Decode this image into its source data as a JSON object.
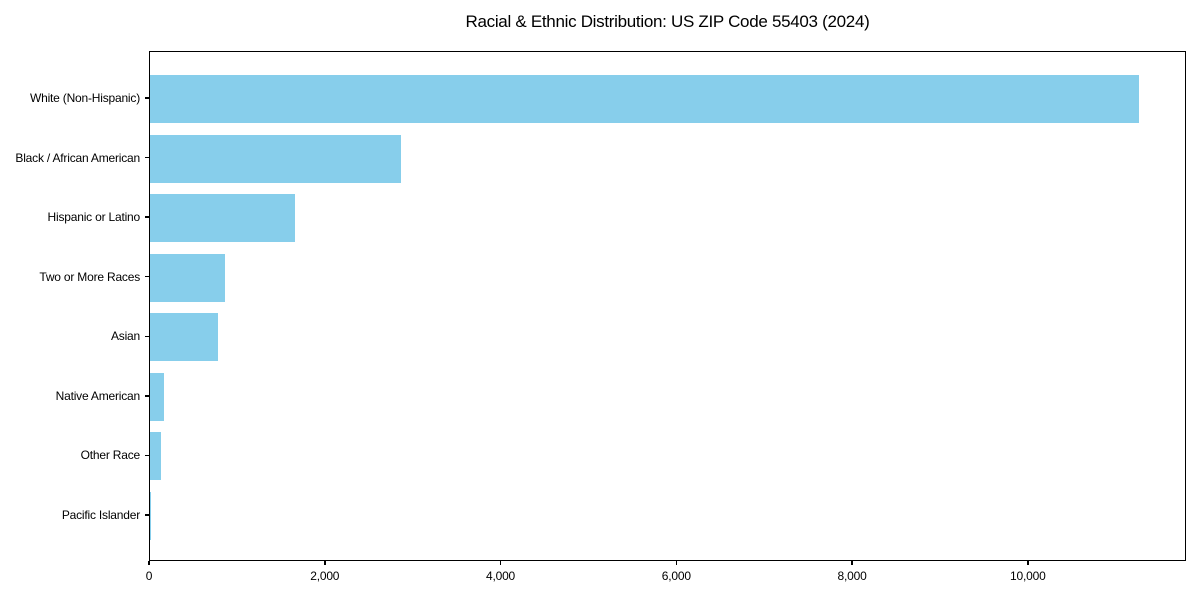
{
  "title": "Racial & Ethnic Distribution: US ZIP Code 55403 (2024)",
  "colors": {
    "bar": "#87CEEB",
    "spine": "#000000",
    "text": "#000000",
    "background": "#ffffff"
  },
  "chart_data": {
    "type": "bar",
    "orientation": "horizontal",
    "title": "Racial & Ethnic Distribution: US ZIP Code 55403 (2024)",
    "xlabel": "",
    "ylabel": "",
    "categories": [
      "White (Non-Hispanic)",
      "Black / African American",
      "Hispanic or Latino",
      "Two or More Races",
      "Asian",
      "Native American",
      "Other Race",
      "Pacific Islander"
    ],
    "values": [
      11250,
      2860,
      1650,
      850,
      770,
      160,
      120,
      15
    ],
    "xlim": [
      0,
      11800
    ],
    "x_ticks": [
      0,
      2000,
      4000,
      6000,
      8000,
      10000
    ],
    "x_tick_labels": [
      "0",
      "2,000",
      "4,000",
      "6,000",
      "8,000",
      "10,000"
    ],
    "bar_color": "#87CEEB",
    "grid": false,
    "legend": false
  }
}
